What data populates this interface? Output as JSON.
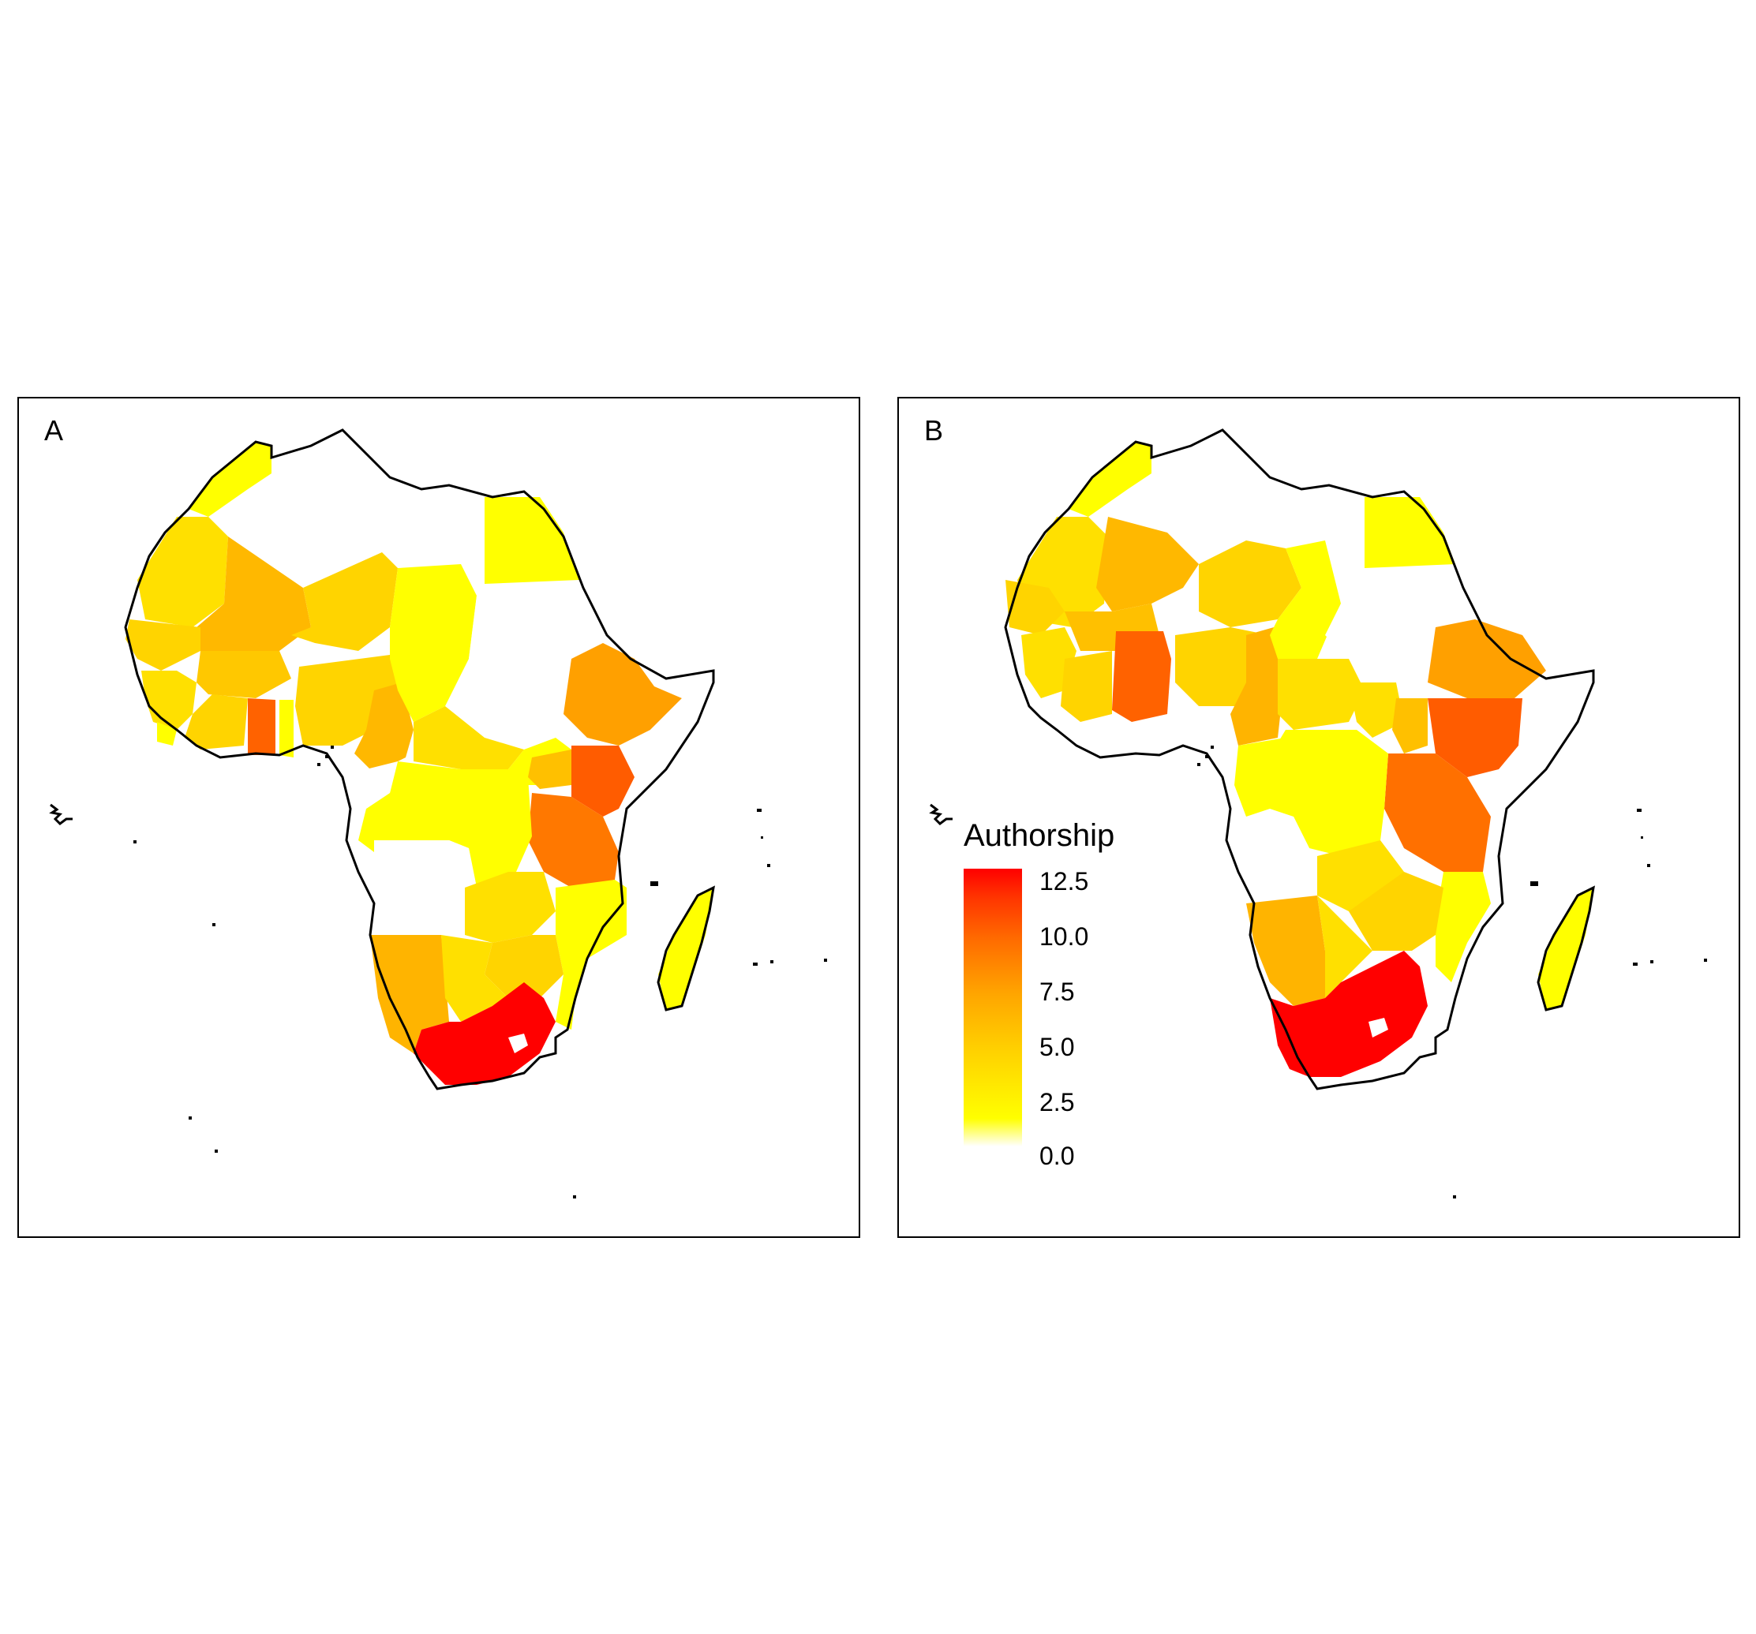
{
  "panels": [
    {
      "label": "A"
    },
    {
      "label": "B"
    }
  ],
  "legend": {
    "title": "Authorship",
    "ticks": [
      "12.5",
      "10.0",
      "7.5",
      "5.0",
      "2.5",
      "0.0"
    ],
    "range": [
      0,
      12.5
    ]
  },
  "colors": {
    "low": "#ffff00",
    "mid": "#ffa500",
    "high": "#ff0000",
    "outline": "#000000"
  }
}
